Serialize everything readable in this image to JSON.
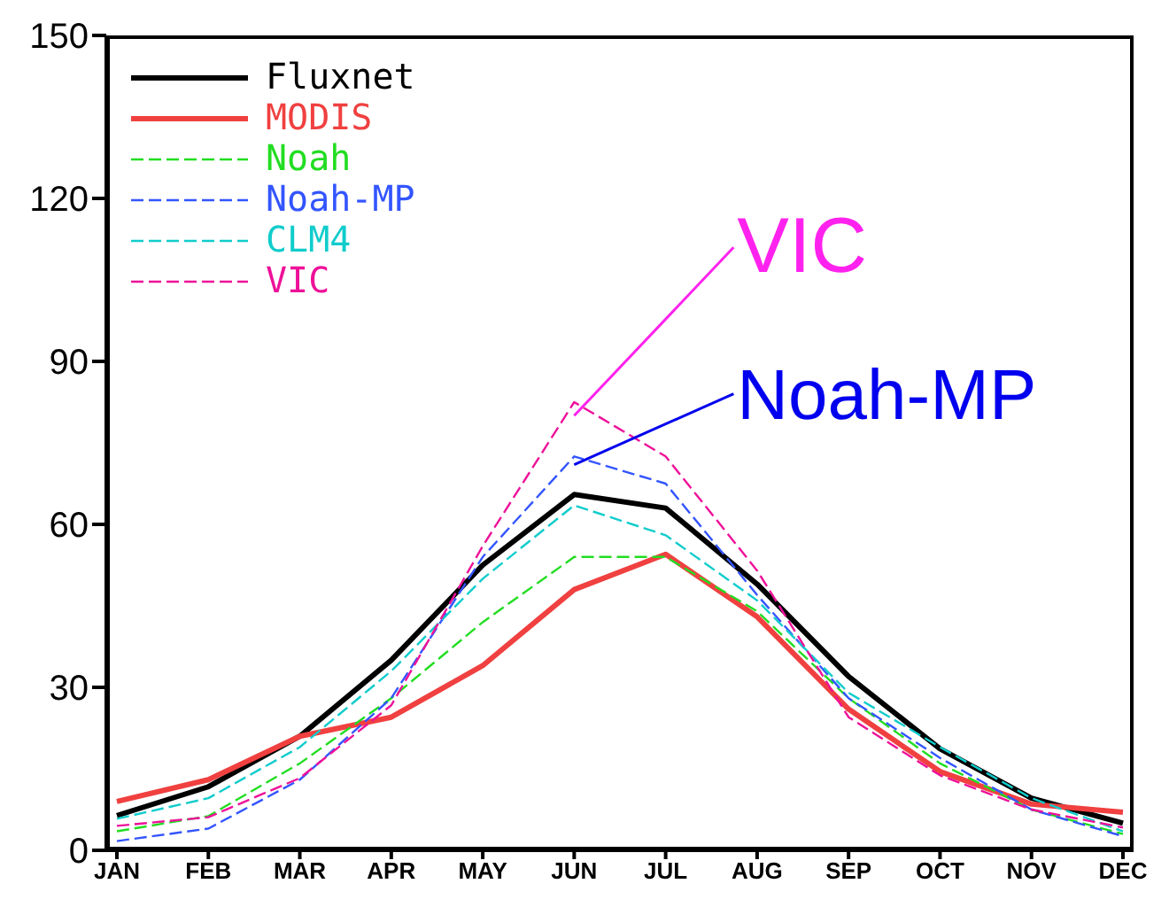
{
  "chart_data": {
    "type": "line",
    "categories": [
      "JAN",
      "FEB",
      "MAR",
      "APR",
      "MAY",
      "JUN",
      "JUL",
      "AUG",
      "SEP",
      "OCT",
      "NOV",
      "DEC"
    ],
    "series": [
      {
        "name": "Fluxnet",
        "color": "#000000",
        "line_style": "solid",
        "values": [
          6.4,
          11.7,
          21,
          35,
          52.5,
          65.5,
          63,
          49,
          32,
          18.7,
          9.6,
          5
        ]
      },
      {
        "name": "MODIS",
        "color": "#f04040",
        "line_style": "solid",
        "values": [
          9,
          13,
          21,
          24.5,
          34,
          48,
          54.5,
          43,
          26,
          14.5,
          8.5,
          7
        ]
      },
      {
        "name": "Noah",
        "color": "#22dd22",
        "line_style": "dashed",
        "values": [
          3.5,
          6.3,
          16,
          28,
          42,
          54,
          54,
          44,
          28,
          16,
          7.5,
          3
        ]
      },
      {
        "name": "Noah-MP",
        "color": "#3355ff",
        "line_style": "dashed",
        "values": [
          1.7,
          4,
          13,
          28,
          54,
          72.5,
          67.5,
          47,
          28,
          17,
          7.5,
          2.6
        ]
      },
      {
        "name": "CLM4",
        "color": "#11cccc",
        "line_style": "dashed",
        "values": [
          5.8,
          9.6,
          19,
          33,
          50,
          63.5,
          58,
          46,
          29,
          19,
          9.6,
          3.5
        ]
      },
      {
        "name": "VIC",
        "color": "#ee1199",
        "line_style": "dashed",
        "values": [
          4.5,
          6.1,
          13.3,
          26.7,
          56,
          82.5,
          72.5,
          51.5,
          24.5,
          13.8,
          7.5,
          4.2
        ]
      }
    ],
    "ylim": [
      0,
      150
    ],
    "yticks": [
      0,
      30,
      60,
      90,
      120,
      150
    ],
    "grid": false,
    "legend": "top left",
    "marker": "none",
    "annotations": [
      {
        "text": "VIC",
        "x": "JUN",
        "y": 80
      },
      {
        "text": "Noah-MP",
        "x": "JUN",
        "y": 71
      }
    ]
  }
}
